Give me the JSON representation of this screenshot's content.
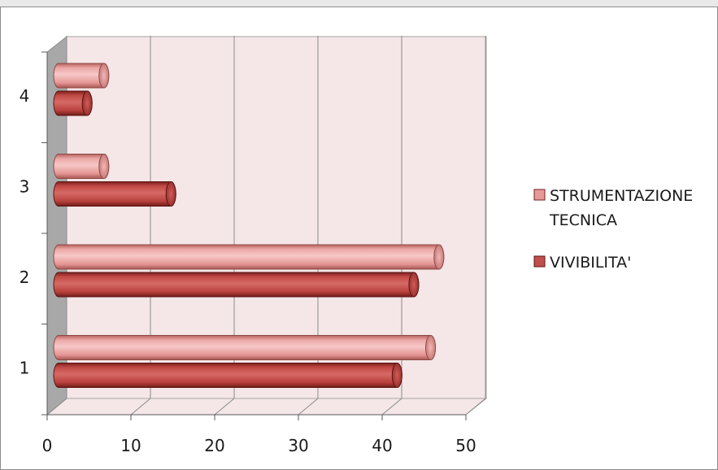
{
  "chart_data": {
    "type": "bar",
    "orientation": "horizontal",
    "style": "3d-cylinder",
    "categories": [
      "1",
      "2",
      "3",
      "4"
    ],
    "series": [
      {
        "name": "VIVIBILITA'",
        "values": [
          41,
          43,
          14,
          4
        ],
        "color": "#c0504d"
      },
      {
        "name": "STRUMENTAZIONE TECNICA",
        "values": [
          45,
          46,
          6,
          6
        ],
        "color": "#e59a9a"
      }
    ],
    "xlim": [
      0,
      50
    ],
    "x_ticks": [
      "0",
      "10",
      "20",
      "30",
      "40",
      "50"
    ],
    "grid": true,
    "legend_position": "right",
    "legend": [
      {
        "lines": [
          "STRUMENTAZIONE",
          "TECNICA"
        ],
        "color": "#e59a9a"
      },
      {
        "lines": [
          "VIVIBILITA'"
        ],
        "color": "#c0504d"
      }
    ],
    "plot_background": "#f5e6e7",
    "floor_color": "#a6a6a6"
  }
}
